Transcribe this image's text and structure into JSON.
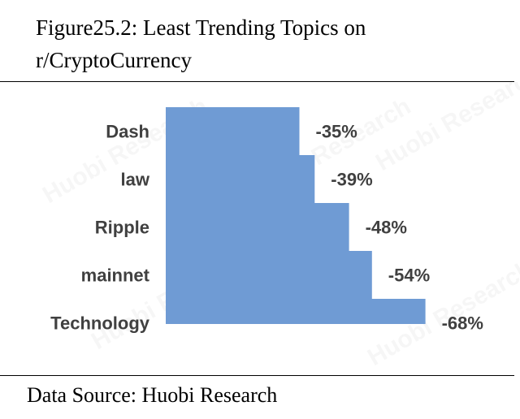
{
  "figure": {
    "title_line1": "Figure25.2: Least Trending Topics on",
    "title_line2": "r/CryptoCurrency",
    "source": "Data Source: Huobi Research",
    "watermark": "Huobi Research"
  },
  "colors": {
    "bar": "#6f9bd4",
    "label": "#404040"
  },
  "chart_data": {
    "type": "bar",
    "orientation": "horizontal",
    "title": "Figure25.2: Least Trending Topics on r/CryptoCurrency",
    "categories": [
      "Dash",
      "law",
      "Ripple",
      "mainnet",
      "Technology"
    ],
    "values": [
      -35,
      -39,
      -48,
      -54,
      -68
    ],
    "value_labels": [
      "-35%",
      "-39%",
      "-48%",
      "-54%",
      "-68%"
    ],
    "unit": "%",
    "xlabel": "",
    "ylabel": "",
    "xlim": [
      0,
      -70
    ],
    "grid": false,
    "legend": "none"
  }
}
